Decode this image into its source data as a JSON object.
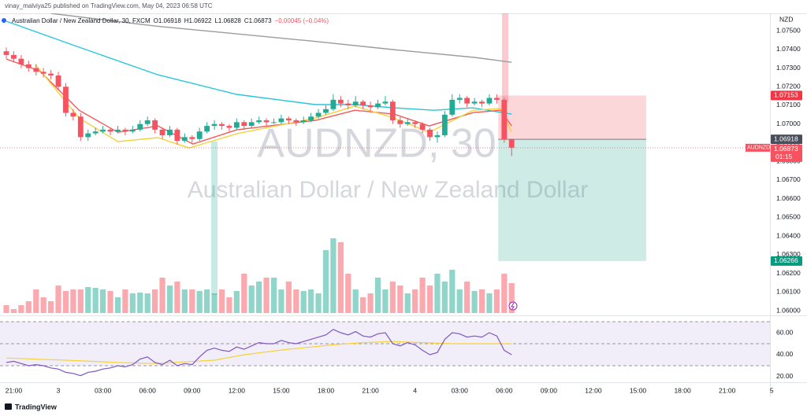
{
  "header": {
    "published": "vinay_malviya25 published on TradingView.com, May 04, 2023 06:58 UTC",
    "brand": "TradingView"
  },
  "chart_data": [
    {
      "type": "candlestick",
      "symbol": "Australian Dollar / New Zealand Dollar, 30, FXCM",
      "ohlc_text": [
        "O1.06918",
        "H1.06922",
        "L1.06828",
        "C1.06873",
        "−0.00045 (−0.04%)"
      ],
      "watermark": "AUDNZD, 30",
      "watermark_name": "Australian Dollar / New Zealand Dollar",
      "currency": "NZD",
      "ticker": "AUDNZD",
      "countdown": "01:15",
      "up_color": "#22ab94",
      "down_color": "#f7525f",
      "xlim": [
        -0.85,
        102.76
      ],
      "xticks": [
        {
          "value": 1,
          "label": "21:00"
        },
        {
          "value": 7,
          "label": "3"
        },
        {
          "value": 13,
          "label": "03:00"
        },
        {
          "value": 19,
          "label": "06:00"
        },
        {
          "value": 25,
          "label": "09:00"
        },
        {
          "value": 31,
          "label": "12:00"
        },
        {
          "value": 37,
          "label": "15:00"
        },
        {
          "value": 43,
          "label": "18:00"
        },
        {
          "value": 49,
          "label": "21:00"
        },
        {
          "value": 55,
          "label": "4"
        },
        {
          "value": 61,
          "label": "03:00"
        },
        {
          "value": 67,
          "label": "06:00"
        },
        {
          "value": 73,
          "label": "09:00"
        },
        {
          "value": 79,
          "label": "12:00"
        },
        {
          "value": 85,
          "label": "15:00"
        },
        {
          "value": 91,
          "label": "18:00"
        },
        {
          "value": 97,
          "label": "21:00"
        },
        {
          "value": 103,
          "label": "5"
        }
      ],
      "ylim": [
        1.05979,
        1.07593
      ],
      "yticks": [
        {
          "value": 1.06,
          "label": "1.06000"
        },
        {
          "value": 1.061,
          "label": "1.06100"
        },
        {
          "value": 1.062,
          "label": "1.06200"
        },
        {
          "value": 1.063,
          "label": "1.06300"
        },
        {
          "value": 1.064,
          "label": "1.06400"
        },
        {
          "value": 1.065,
          "label": "1.06500"
        },
        {
          "value": 1.066,
          "label": "1.06600"
        },
        {
          "value": 1.067,
          "label": "1.06700"
        },
        {
          "value": 1.068,
          "label": "1.06800"
        },
        {
          "value": 1.069,
          "label": "1.06900"
        },
        {
          "value": 1.07,
          "label": "1.07000"
        },
        {
          "value": 1.071,
          "label": "1.07100"
        },
        {
          "value": 1.072,
          "label": "1.07200"
        },
        {
          "value": 1.073,
          "label": "1.07300"
        },
        {
          "value": 1.074,
          "label": "1.07400"
        },
        {
          "value": 1.075,
          "label": "1.07500"
        }
      ],
      "candles": [
        [
          1.0739,
          1.0741,
          1.0735,
          1.0737
        ],
        [
          1.0737,
          1.0739,
          1.0733,
          1.0735
        ],
        [
          1.0735,
          1.0737,
          1.073,
          1.0732
        ],
        [
          1.0732,
          1.0734,
          1.0728,
          1.073
        ],
        [
          1.073,
          1.0732,
          1.0726,
          1.0728
        ],
        [
          1.0728,
          1.073,
          1.0725,
          1.0727
        ],
        [
          1.0727,
          1.0729,
          1.0724,
          1.0726
        ],
        [
          1.0726,
          1.0728,
          1.0718,
          1.072
        ],
        [
          1.072,
          1.0722,
          1.0704,
          1.0706
        ],
        [
          1.0706,
          1.0708,
          1.0702,
          1.0704
        ],
        [
          1.0704,
          1.0706,
          1.0691,
          1.0693
        ],
        [
          1.0693,
          1.0697,
          1.0691,
          1.0695
        ],
        [
          1.0695,
          1.0698,
          1.0694,
          1.0696
        ],
        [
          1.0696,
          1.0699,
          1.0695,
          1.0697
        ],
        [
          1.0697,
          1.0698,
          1.0694,
          1.0696
        ],
        [
          1.0696,
          1.0699,
          1.0695,
          1.0697
        ],
        [
          1.0697,
          1.0698,
          1.0694,
          1.0696
        ],
        [
          1.0696,
          1.0699,
          1.0695,
          1.0697
        ],
        [
          1.0697,
          1.0702,
          1.0696,
          1.07
        ],
        [
          1.07,
          1.0704,
          1.0699,
          1.0702
        ],
        [
          1.0702,
          1.0703,
          1.0695,
          1.0697
        ],
        [
          1.0697,
          1.0698,
          1.0692,
          1.0694
        ],
        [
          1.0694,
          1.0699,
          1.0693,
          1.0697
        ],
        [
          1.0697,
          1.0698,
          1.0689,
          1.0691
        ],
        [
          1.0691,
          1.0695,
          1.069,
          1.0693
        ],
        [
          1.0693,
          1.0694,
          1.069,
          1.0692
        ],
        [
          1.0692,
          1.0698,
          1.0691,
          1.0696
        ],
        [
          1.0696,
          1.0701,
          1.0695,
          1.0699
        ],
        [
          1.0699,
          1.0702,
          1.0697,
          1.07
        ],
        [
          1.07,
          1.0701,
          1.0697,
          1.0699
        ],
        [
          1.0699,
          1.07,
          1.0696,
          1.0698
        ],
        [
          1.0698,
          1.0703,
          1.0697,
          1.0701
        ],
        [
          1.0701,
          1.0702,
          1.0697,
          1.0699
        ],
        [
          1.0699,
          1.0703,
          1.0698,
          1.0701
        ],
        [
          1.0701,
          1.0704,
          1.07,
          1.0702
        ],
        [
          1.0702,
          1.0703,
          1.0699,
          1.0701
        ],
        [
          1.0701,
          1.0703,
          1.07,
          1.0701
        ],
        [
          1.0701,
          1.0705,
          1.07,
          1.0703
        ],
        [
          1.0703,
          1.0704,
          1.07,
          1.0702
        ],
        [
          1.0702,
          1.0703,
          1.0699,
          1.0701
        ],
        [
          1.0701,
          1.0704,
          1.07,
          1.0702
        ],
        [
          1.0702,
          1.0706,
          1.0701,
          1.0704
        ],
        [
          1.0704,
          1.0708,
          1.0703,
          1.0706
        ],
        [
          1.0706,
          1.071,
          1.0705,
          1.0708
        ],
        [
          1.0708,
          1.0716,
          1.0707,
          1.0713
        ],
        [
          1.0713,
          1.0715,
          1.0709,
          1.0711
        ],
        [
          1.0711,
          1.0713,
          1.0708,
          1.071
        ],
        [
          1.071,
          1.0715,
          1.0709,
          1.0712
        ],
        [
          1.0712,
          1.0713,
          1.0708,
          1.071
        ],
        [
          1.071,
          1.0712,
          1.0707,
          1.0709
        ],
        [
          1.0709,
          1.0713,
          1.0708,
          1.0711
        ],
        [
          1.0711,
          1.0715,
          1.071,
          1.0712
        ],
        [
          1.0712,
          1.0713,
          1.07,
          1.0702
        ],
        [
          1.0702,
          1.0704,
          1.0698,
          1.07
        ],
        [
          1.07,
          1.0703,
          1.0699,
          1.0701
        ],
        [
          1.0701,
          1.0702,
          1.0698,
          1.07
        ],
        [
          1.07,
          1.0701,
          1.0695,
          1.0697
        ],
        [
          1.0697,
          1.0698,
          1.0691,
          1.0693
        ],
        [
          1.0693,
          1.0696,
          1.069,
          1.0694
        ],
        [
          1.0694,
          1.0707,
          1.0693,
          1.0705
        ],
        [
          1.0705,
          1.0716,
          1.0704,
          1.0713
        ],
        [
          1.0713,
          1.0716,
          1.0711,
          1.0714
        ],
        [
          1.0714,
          1.0715,
          1.0709,
          1.0711
        ],
        [
          1.0711,
          1.0714,
          1.071,
          1.0712
        ],
        [
          1.0712,
          1.0713,
          1.0709,
          1.0711
        ],
        [
          1.0711,
          1.0716,
          1.071,
          1.0714
        ],
        [
          1.0714,
          1.0716,
          1.0711,
          1.0713
        ],
        [
          1.0713,
          1.0714,
          1.069,
          1.06918
        ],
        [
          1.06918,
          1.06922,
          1.06828,
          1.06873
        ]
      ],
      "volume": [
        10,
        5,
        10,
        15,
        30,
        20,
        15,
        35,
        28,
        30,
        30,
        33,
        32,
        30,
        28,
        20,
        30,
        25,
        26,
        25,
        30,
        45,
        35,
        40,
        30,
        30,
        28,
        30,
        25,
        30,
        20,
        28,
        50,
        35,
        40,
        45,
        45,
        30,
        40,
        30,
        28,
        30,
        25,
        80,
        95,
        90,
        50,
        30,
        20,
        25,
        45,
        30,
        40,
        35,
        25,
        30,
        45,
        35,
        50,
        40,
        55,
        30,
        40,
        28,
        30,
        25,
        30,
        50,
        38
      ],
      "lines": [
        {
          "color": "#9b9b9b",
          "x": [
            6,
            20,
            41,
            52,
            63,
            68
          ],
          "values": [
            1.07593,
            1.07525,
            1.07445,
            1.07399,
            1.07357,
            1.07331
          ]
        },
        {
          "color": "#26c6da",
          "x": [
            0,
            9.8,
            20.4,
            31,
            41.6,
            46.9,
            52.2,
            57.5,
            62.8,
            68
          ],
          "values": [
            1.07551,
            1.07412,
            1.07264,
            1.07159,
            1.07104,
            1.07104,
            1.07087,
            1.07074,
            1.07087,
            1.07053
          ]
        },
        {
          "color": "#f05a5a",
          "x": [
            0,
            4.5,
            9.8,
            15,
            20.4,
            25.1,
            31,
            41.6,
            46.9,
            52.2,
            56.9,
            62.8,
            66.5,
            68
          ],
          "values": [
            1.07348,
            1.07285,
            1.07074,
            1.06956,
            1.0699,
            1.06893,
            1.06969,
            1.0702,
            1.07074,
            1.07053,
            1.0699,
            1.07061,
            1.07074,
            1.0699
          ]
        },
        {
          "color": "#f5d23c",
          "x": [
            3.9,
            9.8,
            15,
            20.4,
            24.6,
            31,
            41.6,
            46.9,
            52.2,
            56.9,
            62.8,
            66.5,
            68
          ],
          "values": [
            1.07319,
            1.07032,
            1.06906,
            1.06927,
            1.06872,
            1.06948,
            1.07032,
            1.07096,
            1.07032,
            1.06956,
            1.07074,
            1.07083,
            1.06956
          ]
        }
      ],
      "position": {
        "start": 66.2,
        "end": 86.1,
        "entry": 1.06918,
        "stop": 1.07153,
        "target": 1.06266
      }
    },
    {
      "type": "line",
      "color": "#7e57c2",
      "ma_color": "#f5d23c",
      "ylim": [
        15.7,
        74.3
      ],
      "yticks": [
        {
          "value": 20,
          "label": "20.00"
        },
        {
          "value": 40,
          "label": "40.00"
        },
        {
          "value": 60,
          "label": "60.00"
        }
      ],
      "levels": [
        30,
        50,
        70
      ],
      "values": [
        33,
        34,
        32,
        30,
        31,
        30,
        28,
        27,
        24,
        23,
        21,
        24,
        25,
        27,
        28,
        30,
        29,
        31,
        36,
        38,
        33,
        31,
        35,
        30,
        32,
        31,
        38,
        44,
        46,
        44,
        43,
        47,
        45,
        48,
        51,
        50,
        50,
        53,
        51,
        50,
        52,
        54,
        56,
        58,
        63,
        60,
        58,
        61,
        57,
        56,
        59,
        60,
        50,
        48,
        51,
        49,
        44,
        40,
        42,
        54,
        60,
        59,
        56,
        57,
        56,
        60,
        57,
        44,
        40
      ],
      "ma_x": [
        0,
        8,
        15,
        20,
        28,
        32,
        38,
        44,
        48,
        52,
        56,
        60,
        68
      ],
      "ma_values": [
        37,
        35,
        33,
        32,
        35,
        40,
        45,
        49,
        51,
        52,
        51,
        50,
        50
      ]
    }
  ]
}
